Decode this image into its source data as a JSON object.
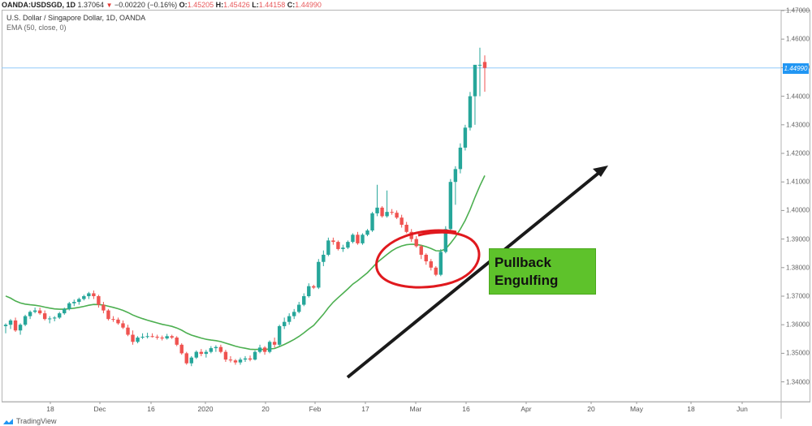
{
  "header": {
    "symbol": "OANDA:USDSGD, 1D",
    "last": "1.37064",
    "change": "−0.00220 (−0.16%)",
    "open_label": "O:",
    "open": "1.45205",
    "high_label": "H:",
    "high": "1.45426",
    "low_label": "L:",
    "low": "1.44158",
    "close_label": "C:",
    "close": "1.44990",
    "direction_icon": "triangle-down-icon"
  },
  "legend": {
    "title": "U.S. Dollar / Singapore Dollar, 1D, OANDA",
    "indicator": "EMA (50, close, 0)"
  },
  "annotation": {
    "line1": "Pullback",
    "line2": "Engulfing"
  },
  "branding": {
    "label": "TradingView"
  },
  "colors": {
    "up": "#26a69a",
    "down": "#ef5350",
    "ema": "#4caf50",
    "price_line": "#90caf9",
    "price_tag": "#2196f3",
    "annotation_bg": "#5ec22b",
    "circle": "#e0191e",
    "arrow": "#1a1a1a"
  },
  "chart_data": {
    "type": "candlestick",
    "title": "U.S. Dollar / Singapore Dollar, 1D, OANDA",
    "xlabel": "",
    "ylabel": "",
    "x_ticks": [
      "18",
      "Dec",
      "16",
      "2020",
      "20",
      "Feb",
      "17",
      "Mar",
      "16",
      "Apr",
      "20",
      "May",
      "18",
      "Jun"
    ],
    "y_ticks": [
      "1.47000",
      "1.46000",
      "1.45000",
      "1.44000",
      "1.43000",
      "1.42000",
      "1.41000",
      "1.40000",
      "1.39000",
      "1.38000",
      "1.37000",
      "1.36000",
      "1.35000",
      "1.34000"
    ],
    "ylim": [
      1.337,
      1.4705
    ],
    "current_price": "1.44990",
    "series": [
      {
        "name": "USDSGD",
        "ohlc": [
          [
            1.3595,
            1.3605,
            1.357,
            1.36
          ],
          [
            1.36,
            1.362,
            1.3585,
            1.3615
          ],
          [
            1.3615,
            1.3625,
            1.3575,
            1.358
          ],
          [
            1.358,
            1.3605,
            1.3565,
            1.36
          ],
          [
            1.36,
            1.3635,
            1.3595,
            1.363
          ],
          [
            1.363,
            1.365,
            1.362,
            1.3645
          ],
          [
            1.3645,
            1.366,
            1.364,
            1.365
          ],
          [
            1.365,
            1.366,
            1.3635,
            1.364
          ],
          [
            1.364,
            1.365,
            1.3615,
            1.362
          ],
          [
            1.362,
            1.363,
            1.3605,
            1.3622
          ],
          [
            1.3622,
            1.363,
            1.3612,
            1.3625
          ],
          [
            1.3625,
            1.3645,
            1.362,
            1.364
          ],
          [
            1.364,
            1.366,
            1.3635,
            1.3655
          ],
          [
            1.3655,
            1.368,
            1.365,
            1.3675
          ],
          [
            1.3675,
            1.3688,
            1.3665,
            1.368
          ],
          [
            1.368,
            1.3695,
            1.367,
            1.369
          ],
          [
            1.369,
            1.3705,
            1.3685,
            1.37
          ],
          [
            1.37,
            1.3715,
            1.369,
            1.371
          ],
          [
            1.371,
            1.372,
            1.369,
            1.37
          ],
          [
            1.37,
            1.3705,
            1.366,
            1.367
          ],
          [
            1.367,
            1.368,
            1.364,
            1.365
          ],
          [
            1.365,
            1.3655,
            1.3615,
            1.362
          ],
          [
            1.362,
            1.363,
            1.361,
            1.3618
          ],
          [
            1.3618,
            1.3625,
            1.36,
            1.3605
          ],
          [
            1.3605,
            1.3615,
            1.3585,
            1.359
          ],
          [
            1.359,
            1.36,
            1.356,
            1.3565
          ],
          [
            1.3565,
            1.358,
            1.353,
            1.354
          ],
          [
            1.354,
            1.356,
            1.3535,
            1.3555
          ],
          [
            1.3555,
            1.357,
            1.355,
            1.3558
          ],
          [
            1.3558,
            1.3572,
            1.3552,
            1.356
          ],
          [
            1.356,
            1.357,
            1.3555,
            1.3558
          ],
          [
            1.3558,
            1.3565,
            1.3548,
            1.3555
          ],
          [
            1.3555,
            1.3562,
            1.3545,
            1.3552
          ],
          [
            1.3552,
            1.3568,
            1.3548,
            1.356
          ],
          [
            1.356,
            1.3565,
            1.355,
            1.3555
          ],
          [
            1.3555,
            1.356,
            1.3525,
            1.353
          ],
          [
            1.353,
            1.3535,
            1.3495,
            1.35
          ],
          [
            1.35,
            1.3505,
            1.346,
            1.3465
          ],
          [
            1.3465,
            1.349,
            1.3455,
            1.3485
          ],
          [
            1.3485,
            1.351,
            1.348,
            1.3505
          ],
          [
            1.3505,
            1.3515,
            1.349,
            1.3498
          ],
          [
            1.3498,
            1.3512,
            1.3485,
            1.3505
          ],
          [
            1.3505,
            1.3525,
            1.35,
            1.3518
          ],
          [
            1.3518,
            1.3528,
            1.3505,
            1.3522
          ],
          [
            1.3522,
            1.353,
            1.35,
            1.3505
          ],
          [
            1.3505,
            1.3512,
            1.347,
            1.3478
          ],
          [
            1.3478,
            1.349,
            1.3468,
            1.3475
          ],
          [
            1.3475,
            1.348,
            1.346,
            1.3468
          ],
          [
            1.3468,
            1.3485,
            1.346,
            1.3478
          ],
          [
            1.3478,
            1.349,
            1.347,
            1.3482
          ],
          [
            1.3482,
            1.3492,
            1.3472,
            1.3478
          ],
          [
            1.3478,
            1.351,
            1.3475,
            1.3505
          ],
          [
            1.3505,
            1.353,
            1.35,
            1.352
          ],
          [
            1.352,
            1.3525,
            1.3495,
            1.3505
          ],
          [
            1.3505,
            1.3545,
            1.35,
            1.354
          ],
          [
            1.354,
            1.3555,
            1.352,
            1.353
          ],
          [
            1.353,
            1.36,
            1.3525,
            1.3595
          ],
          [
            1.3595,
            1.3625,
            1.3585,
            1.361
          ],
          [
            1.361,
            1.364,
            1.36,
            1.363
          ],
          [
            1.363,
            1.3655,
            1.362,
            1.3645
          ],
          [
            1.3645,
            1.368,
            1.364,
            1.367
          ],
          [
            1.367,
            1.371,
            1.3665,
            1.37
          ],
          [
            1.37,
            1.3745,
            1.3695,
            1.3735
          ],
          [
            1.3735,
            1.374,
            1.3725,
            1.373
          ],
          [
            1.373,
            1.383,
            1.3725,
            1.382
          ],
          [
            1.382,
            1.386,
            1.3805,
            1.3845
          ],
          [
            1.3845,
            1.3905,
            1.384,
            1.3895
          ],
          [
            1.3895,
            1.3905,
            1.388,
            1.389
          ],
          [
            1.389,
            1.3895,
            1.386,
            1.3865
          ],
          [
            1.3865,
            1.388,
            1.3855,
            1.387
          ],
          [
            1.387,
            1.3895,
            1.3865,
            1.389
          ],
          [
            1.389,
            1.392,
            1.3885,
            1.3915
          ],
          [
            1.3915,
            1.3925,
            1.388,
            1.3885
          ],
          [
            1.3885,
            1.392,
            1.388,
            1.3915
          ],
          [
            1.3915,
            1.3935,
            1.391,
            1.393
          ],
          [
            1.393,
            1.3995,
            1.3925,
            1.399
          ],
          [
            1.399,
            1.409,
            1.398,
            1.401
          ],
          [
            1.401,
            1.4015,
            1.3975,
            1.398
          ],
          [
            1.398,
            1.407,
            1.3975,
            1.3995
          ],
          [
            1.3995,
            1.4005,
            1.3985,
            1.3992
          ],
          [
            1.3992,
            1.4,
            1.397,
            1.3975
          ],
          [
            1.3975,
            1.3985,
            1.394,
            1.395
          ],
          [
            1.395,
            1.396,
            1.392,
            1.3925
          ],
          [
            1.3925,
            1.3935,
            1.389,
            1.39
          ],
          [
            1.39,
            1.391,
            1.387,
            1.3875
          ],
          [
            1.3875,
            1.388,
            1.383,
            1.3845
          ],
          [
            1.3845,
            1.385,
            1.381,
            1.3822
          ],
          [
            1.3822,
            1.383,
            1.379,
            1.38
          ],
          [
            1.38,
            1.3805,
            1.377,
            1.3775
          ],
          [
            1.3775,
            1.3865,
            1.377,
            1.3855
          ],
          [
            1.3855,
            1.3945,
            1.385,
            1.3935
          ],
          [
            1.3935,
            1.411,
            1.393,
            1.41
          ],
          [
            1.41,
            1.4155,
            1.402,
            1.4145
          ],
          [
            1.4145,
            1.4235,
            1.413,
            1.422
          ],
          [
            1.422,
            1.43,
            1.421,
            1.429
          ],
          [
            1.429,
            1.4415,
            1.428,
            1.44
          ],
          [
            1.44,
            1.448,
            1.43,
            1.451
          ],
          [
            1.451,
            1.457,
            1.44,
            1.451
          ],
          [
            1.452,
            1.4543,
            1.4416,
            1.4499
          ]
        ]
      },
      {
        "name": "EMA (50, close, 0)",
        "values_desc": "Falls from ~1.3710 to ~1.3545 near late Jan, then rises to ~1.3920 by mid-Mar"
      }
    ],
    "annotations": [
      {
        "type": "ellipse",
        "color": "#e0191e",
        "label": "pullback area"
      },
      {
        "type": "arrow",
        "color": "#1a1a1a",
        "from": [
          428,
          465
        ],
        "to": [
          748,
          205
        ]
      },
      {
        "type": "text-box",
        "text": "Pullback Engulfing",
        "color": "#5ec22b"
      }
    ]
  }
}
